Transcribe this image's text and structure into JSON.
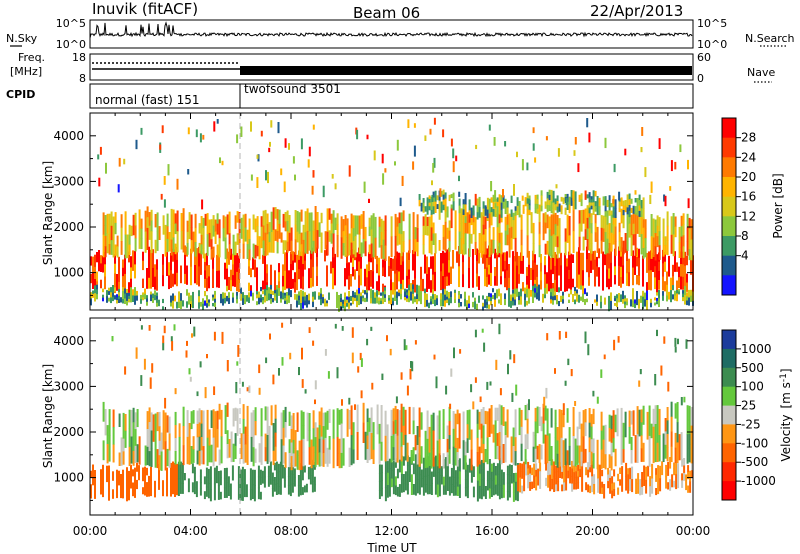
{
  "header": {
    "station": "Inuvik (fitACF)",
    "beam": "Beam 06",
    "date": "22/Apr/2013"
  },
  "top_panel": {
    "nsky_label": "N.Sky",
    "nsearch_label": "N.Search",
    "freq_label_1": "Freq.",
    "freq_label_2": "[MHz]",
    "nave_label": "Nave",
    "cpid_label": "CPID",
    "noise_left_ticks": [
      "10^5",
      "10^0"
    ],
    "noise_right_ticks": [
      "10^5",
      "10^0"
    ],
    "freq_ticks": [
      "18",
      "8"
    ],
    "nave_ticks": [
      "60",
      "0"
    ],
    "cpid_segments": [
      {
        "label": "normal (fast) 151",
        "start_hour": 0,
        "end_hour": 6
      },
      {
        "label": "twofsound 3501",
        "start_hour": 6,
        "end_hour": 24
      }
    ]
  },
  "colorbars": {
    "power": {
      "label": "Power [dB]",
      "ticks": [
        "28",
        "24",
        "20",
        "16",
        "12",
        "8",
        "4"
      ],
      "colors": [
        "#ff0000",
        "#ff3a00",
        "#ff7a00",
        "#ffb400",
        "#d8c81a",
        "#8cc83c",
        "#3c9a64",
        "#1e5a8c",
        "#1414ff"
      ]
    },
    "velocity": {
      "label_main": "Velocity",
      "label_unit": "[m s",
      "label_sup": "-1",
      "label_close": "]",
      "ticks": [
        "1000",
        "500",
        "100",
        "25",
        "-25",
        "-100",
        "-500",
        "-1000"
      ],
      "colors": [
        "#1c3c9c",
        "#1e6c64",
        "#3c8c50",
        "#64c83c",
        "#c8c8c0",
        "#ff9614",
        "#ff6400",
        "#ff2800",
        "#ff0000"
      ]
    }
  },
  "chart_data": [
    {
      "type": "heatmap",
      "title": "Power",
      "xlabel": "Time UT",
      "ylabel": "Slant Range [km]",
      "x_ticks": [
        "00:00",
        "04:00",
        "08:00",
        "12:00",
        "16:00",
        "20:00",
        "00:00"
      ],
      "y_ticks": [
        "1000",
        "2000",
        "3000",
        "4000"
      ],
      "xlim_hours": [
        0,
        24
      ],
      "ylim_km": [
        180,
        4500
      ],
      "colorbar_label": "Power [dB]",
      "colorbar_range_db": [
        0,
        30
      ],
      "bands": [
        {
          "range_km": [
            650,
            1450
          ],
          "hours": [
            0,
            24
          ],
          "power_db": 26
        },
        {
          "range_km": [
            1400,
            2300
          ],
          "hours": [
            0.5,
            24
          ],
          "power_db": 18
        },
        {
          "range_km": [
            2300,
            2700
          ],
          "hours": [
            13,
            22
          ],
          "power_db": 12
        },
        {
          "range_km": [
            300,
            600
          ],
          "hours": [
            0,
            24
          ],
          "power_db": 10
        }
      ]
    },
    {
      "type": "heatmap",
      "title": "Velocity",
      "xlabel": "Time UT",
      "ylabel": "Slant Range [km]",
      "x_ticks": [
        "00:00",
        "04:00",
        "08:00",
        "12:00",
        "16:00",
        "20:00",
        "00:00"
      ],
      "y_ticks": [
        "1000",
        "2000",
        "3000",
        "4000"
      ],
      "xlim_hours": [
        0,
        24
      ],
      "ylim_km": [
        180,
        4500
      ],
      "colorbar_label": "Velocity [m s-1]",
      "bands": [
        {
          "range_km": [
            600,
            1250
          ],
          "hours": [
            0,
            3.5
          ],
          "velocity_ms": -300
        },
        {
          "range_km": [
            600,
            1250
          ],
          "hours": [
            3.5,
            9
          ],
          "velocity_ms": 300
        },
        {
          "range_km": [
            600,
            1400
          ],
          "hours": [
            11.5,
            17
          ],
          "velocity_ms": 200
        },
        {
          "range_km": [
            700,
            1300
          ],
          "hours": [
            17,
            24
          ],
          "velocity_ms": -100
        },
        {
          "range_km": [
            1300,
            2500
          ],
          "hours": [
            0.5,
            24
          ],
          "velocity_ms": 0
        }
      ]
    }
  ],
  "xaxis": {
    "tick_labels": [
      "00:00",
      "04:00",
      "08:00",
      "12:00",
      "16:00",
      "20:00",
      "00:00"
    ],
    "label": "Time UT"
  }
}
